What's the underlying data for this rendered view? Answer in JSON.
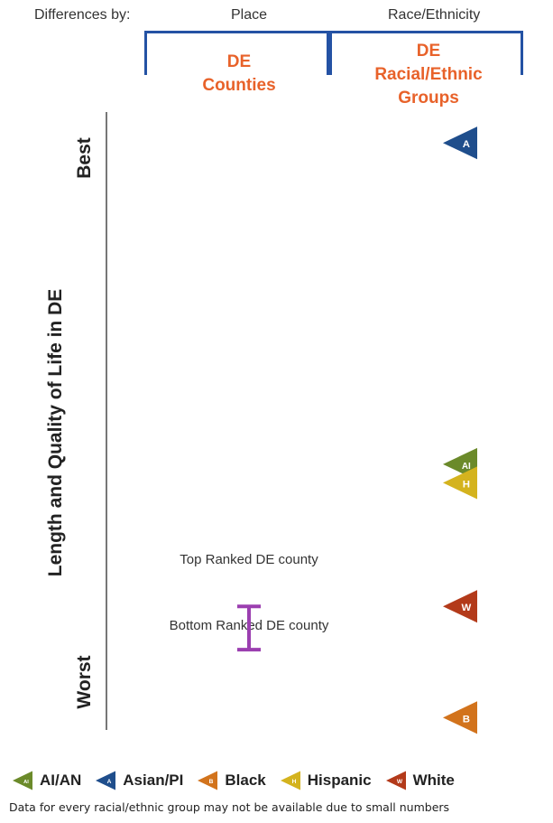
{
  "header": {
    "differences_by": "Differences by:",
    "place": "Place",
    "race_ethnicity": "Race/Ethnicity",
    "group_place_title": [
      "DE",
      "Counties"
    ],
    "group_race_title": [
      "DE",
      "Racial/Ethnic",
      "Groups"
    ]
  },
  "axis": {
    "label": "Length and Quality of Life in DE",
    "best": "Best",
    "worst": "Worst"
  },
  "county_range": {
    "top_label": "Top Ranked DE county",
    "bottom_label": "Bottom Ranked DE county",
    "top_rank": 0.8,
    "bottom_rank": 0.87,
    "color": "#9b3fb0"
  },
  "chart_data": {
    "type": "scatter",
    "scale_note": "relative rank: 0 = Best, 1 = Worst",
    "markers": [
      {
        "group": "Asian/PI",
        "letter": "A",
        "rank": 0.05,
        "color": "#1f4e8c"
      },
      {
        "group": "AI/AN",
        "letter": "AI",
        "rank": 0.57,
        "color": "#6b8a2a"
      },
      {
        "group": "Hispanic",
        "letter": "H",
        "rank": 0.6,
        "color": "#d4b31e"
      },
      {
        "group": "White",
        "letter": "W",
        "rank": 0.8,
        "color": "#b33a1a"
      },
      {
        "group": "Black",
        "letter": "B",
        "rank": 0.98,
        "color": "#d2731c"
      }
    ]
  },
  "legend": [
    {
      "label": "AI/AN",
      "letter": "AI",
      "color": "#6b8a2a"
    },
    {
      "label": "Asian/PI",
      "letter": "A",
      "color": "#1f4e8c"
    },
    {
      "label": "Black",
      "letter": "B",
      "color": "#d2731c"
    },
    {
      "label": "Hispanic",
      "letter": "H",
      "color": "#d4b31e"
    },
    {
      "label": "White",
      "letter": "W",
      "color": "#b33a1a"
    }
  ],
  "footnote": "Data for every racial/ethnic group may not be available due to small numbers"
}
